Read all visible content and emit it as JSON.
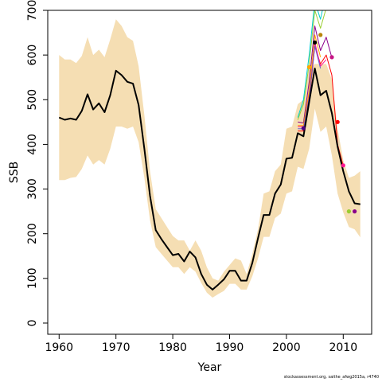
{
  "chart_data": {
    "type": "line",
    "xlabel": "Year",
    "ylabel": "SSB",
    "xlim": [
      1958,
      2015
    ],
    "ylim": [
      -25,
      700
    ],
    "x_ticks": [
      1960,
      1970,
      1980,
      1990,
      2000,
      2010
    ],
    "y_ticks": [
      0,
      100,
      200,
      300,
      400,
      500,
      600,
      700
    ],
    "grid": false,
    "colors": {
      "band": "#f5deb3",
      "main": "#000000",
      "retro": [
        "#ff0000",
        "#8b008b",
        "#ff1493",
        "#ffa500",
        "#6a5acd",
        "#9acd32",
        "#00ced1",
        "#87ceeb"
      ]
    },
    "confidence_band": {
      "x": [
        1960,
        1961,
        1962,
        1963,
        1964,
        1965,
        1966,
        1967,
        1968,
        1969,
        1970,
        1971,
        1972,
        1973,
        1974,
        1975,
        1976,
        1977,
        1978,
        1979,
        1980,
        1981,
        1982,
        1983,
        1984,
        1985,
        1986,
        1987,
        1988,
        1989,
        1990,
        1991,
        1992,
        1993,
        1994,
        1995,
        1996,
        1997,
        1998,
        1999,
        2000,
        2001,
        2002,
        2003,
        2004,
        2005,
        2006,
        2007,
        2008,
        2009,
        2010,
        2011,
        2012,
        2013
      ],
      "lower": [
        320,
        320,
        325,
        327,
        345,
        375,
        355,
        365,
        355,
        390,
        440,
        440,
        435,
        440,
        405,
        325,
        230,
        170,
        155,
        140,
        125,
        125,
        110,
        125,
        115,
        90,
        68,
        57,
        65,
        72,
        88,
        88,
        75,
        75,
        105,
        145,
        193,
        193,
        235,
        245,
        290,
        295,
        350,
        345,
        390,
        480,
        428,
        440,
        375,
        290,
        248,
        215,
        210,
        192
      ],
      "upper": [
        600,
        590,
        590,
        582,
        598,
        640,
        600,
        612,
        595,
        635,
        680,
        665,
        640,
        632,
        575,
        465,
        340,
        255,
        235,
        215,
        195,
        185,
        185,
        162,
        185,
        162,
        125,
        100,
        95,
        115,
        130,
        145,
        140,
        110,
        155,
        210,
        290,
        295,
        340,
        355,
        435,
        440,
        490,
        500,
        570,
        580,
        580,
        580,
        545,
        435,
        365,
        325,
        330,
        340
      ]
    },
    "series": [
      {
        "x": [
          1960,
          1961,
          1962,
          1963,
          1964,
          1965,
          1966,
          1967,
          1968,
          1969,
          1970,
          1971,
          1972,
          1973,
          1974,
          1975,
          1976,
          1977,
          1978,
          1979,
          1980,
          1981,
          1982,
          1983,
          1984,
          1985,
          1986,
          1987,
          1988,
          1989,
          1990,
          1991,
          1992,
          1993,
          1994,
          1995,
          1996,
          1997,
          1998,
          1999,
          2000,
          2001,
          2002,
          2003,
          2004,
          2005,
          2006,
          2007,
          2008,
          2009,
          2010,
          2011,
          2012,
          2013
        ],
        "values": [
          460,
          455,
          458,
          455,
          475,
          512,
          478,
          492,
          472,
          510,
          565,
          555,
          540,
          536,
          488,
          390,
          285,
          208,
          188,
          170,
          152,
          155,
          138,
          160,
          147,
          110,
          86,
          75,
          86,
          98,
          117,
          117,
          95,
          95,
          135,
          190,
          242,
          242,
          290,
          310,
          368,
          370,
          425,
          418,
          495,
          570,
          510,
          520,
          470,
          395,
          340,
          295,
          268,
          266
        ]
      },
      {
        "x": [
          2002,
          2003,
          2004,
          2005,
          2006,
          2007,
          2008,
          2009,
          2010
        ],
        "values": [
          430,
          430,
          500,
          620,
          580,
          600,
          555,
          400,
          352
        ]
      },
      {
        "x": [
          2002,
          2003,
          2004,
          2005,
          2006,
          2007,
          2008
        ],
        "values": [
          450,
          448,
          540,
          665,
          610,
          640,
          594
        ]
      },
      {
        "x": [
          2002,
          2003,
          2004,
          2005,
          2006,
          2007
        ],
        "values": [
          440,
          440,
          515,
          628,
          575,
          590
        ]
      },
      {
        "x": [
          2002,
          2003,
          2004,
          2005,
          2006
        ],
        "values": [
          442,
          442,
          520,
          645,
          595
        ]
      },
      {
        "x": [
          2002,
          2003,
          2004,
          2005,
          2006
        ],
        "values": [
          435,
          435,
          505,
          620,
          570
        ]
      },
      {
        "x": [
          2002,
          2003,
          2004,
          2005,
          2006,
          2007
        ],
        "values": [
          455,
          490,
          580,
          700,
          660,
          705
        ]
      },
      {
        "x": [
          2002,
          2003,
          2004,
          2005,
          2006,
          2007
        ],
        "values": [
          460,
          500,
          600,
          720,
          680,
          740
        ]
      }
    ],
    "endpoints": [
      {
        "x": 2012,
        "y": 250,
        "color": "#8b008b"
      },
      {
        "x": 2011,
        "y": 250,
        "color": "#9acd32"
      },
      {
        "x": 2010,
        "y": 353,
        "color": "#ff1493"
      },
      {
        "x": 2009,
        "y": 450,
        "color": "#ff0000"
      },
      {
        "x": 2008,
        "y": 595,
        "color": "#c71585"
      },
      {
        "x": 2006,
        "y": 645,
        "color": "#b8860b"
      },
      {
        "x": 2005,
        "y": 628,
        "color": "#000000"
      },
      {
        "x": 2004,
        "y": 573,
        "color": "#ffa500"
      },
      {
        "x": 2003,
        "y": 436,
        "color": "#4b0082"
      }
    ]
  },
  "footer": "stockassessment.org, saithe_afwg2015a, r4740"
}
